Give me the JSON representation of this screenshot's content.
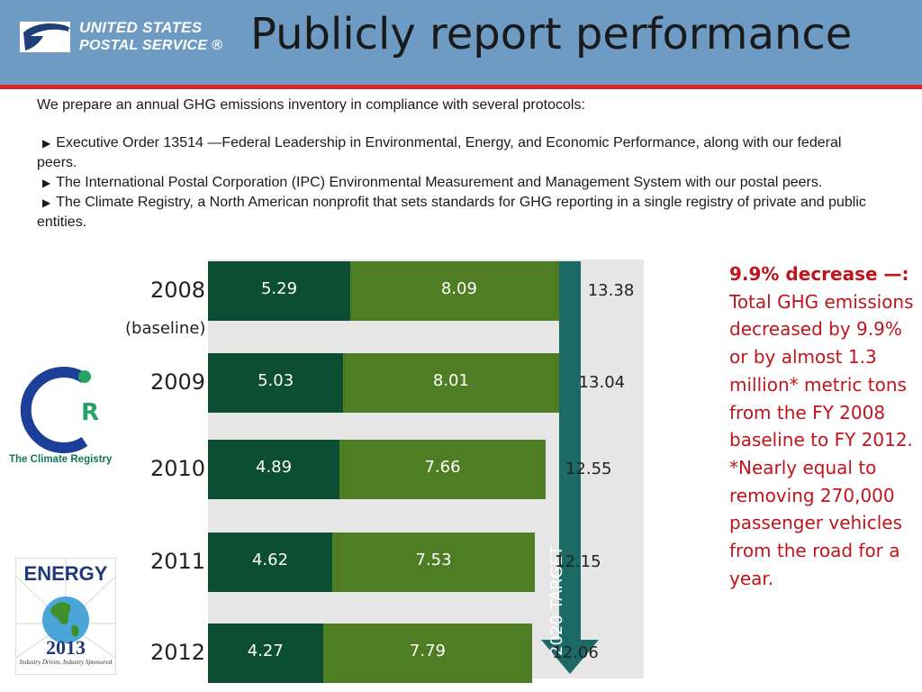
{
  "header": {
    "logo_line1": "UNITED STATES",
    "logo_line2": "POSTAL SERVICE ®",
    "title": "Publicly report performance"
  },
  "intro": "We prepare an annual GHG emissions inventory in compliance with several protocols:",
  "bullets": [
    "Executive Order 13514 —Federal Leadership in Environmental, Energy, and Economic Performance, along with our federal peers.",
    "The International Postal Corporation (IPC) Environmental Measurement and Management System with our postal peers.",
    "The Climate Registry, a North American nonprofit that sets standards for GHG reporting in a single registry of private and public entities."
  ],
  "chart_data": {
    "type": "bar",
    "orientation": "horizontal",
    "stacked": true,
    "categories": [
      "2008",
      "2009",
      "2010",
      "2011",
      "2012"
    ],
    "category_note": "(baseline)",
    "series": [
      {
        "values": [
          5.29,
          5.03,
          4.89,
          4.62,
          4.27
        ],
        "color": "#0b4e33"
      },
      {
        "values": [
          8.09,
          8.01,
          7.66,
          7.53,
          7.79
        ],
        "color": "#4e7d24"
      }
    ],
    "totals": [
      "13.38",
      "13.04",
      "12.55",
      "12.15",
      "12.06"
    ],
    "xlim": [
      0,
      16.2
    ],
    "annotation": "2020 TARGET",
    "annotation_color": "#1b6a66",
    "background_color": "#e6e6e6"
  },
  "side_note": {
    "heading": "9.9% decrease —:",
    "body": "Total GHG emissions decreased by 9.9% or by almost 1.3 million* metric tons from the FY 2008 baseline to FY 2012.",
    "footnote": "*Nearly equal to removing 270,000 passenger vehicles from the road for a year."
  },
  "logos": {
    "climate_registry_name": "The Climate Registry",
    "climate_registry_letter": "R",
    "energy_word": "ENERGY",
    "energy_year": "2013",
    "energy_tagline": "Industry Driven, Industry Sponsored"
  }
}
